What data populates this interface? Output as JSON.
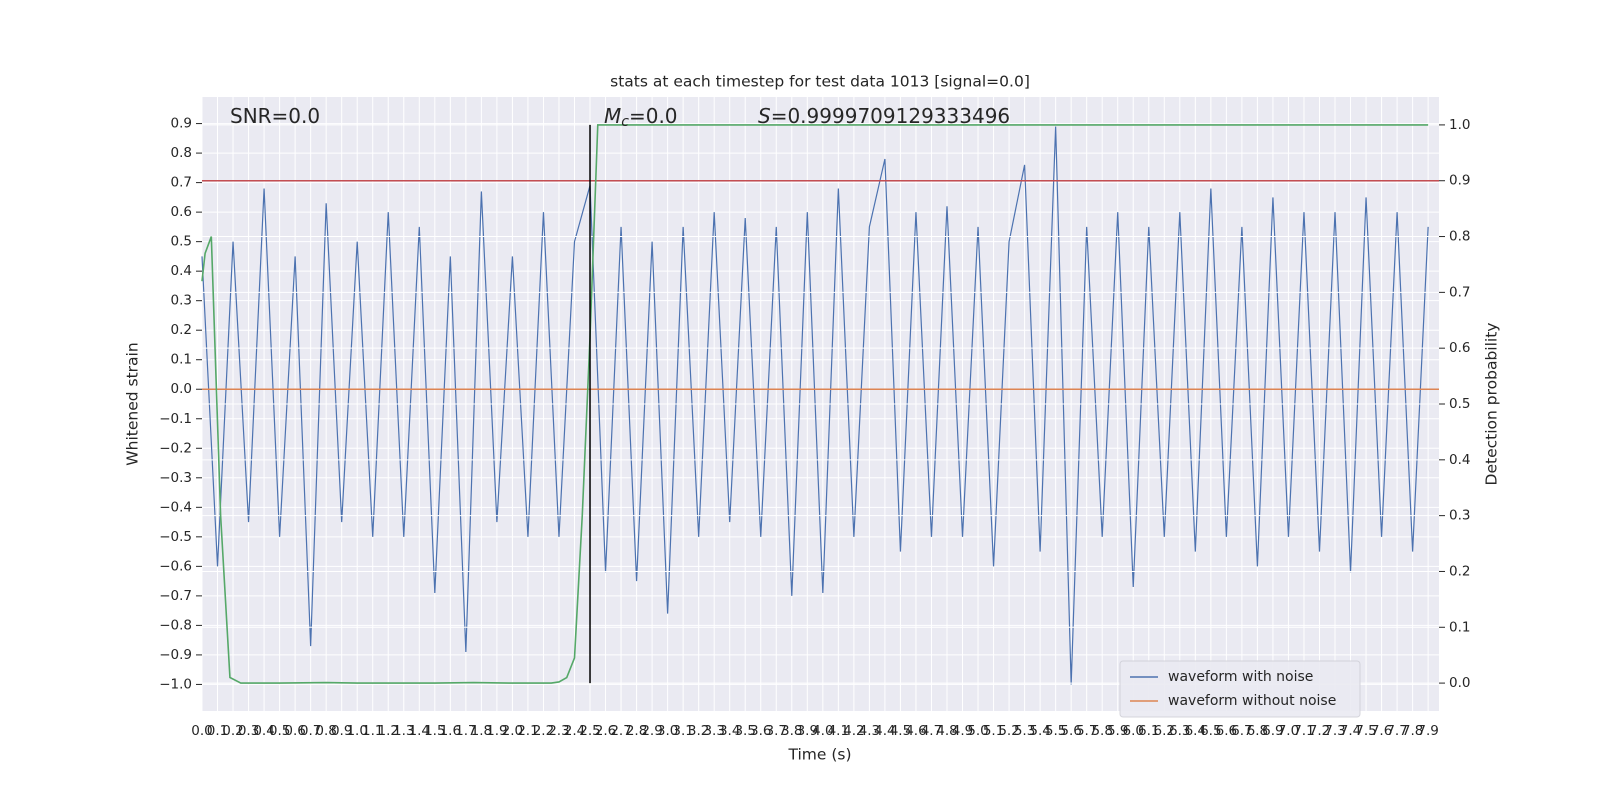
{
  "chart_data": {
    "type": "line",
    "title": "stats at each timestep for test data 1013 [signal=0.0]",
    "x_label": "Time (s)",
    "y_label": "Whitened strain",
    "y2_label": "Detection probability",
    "annotations": [
      {
        "text": "SNR=0.0"
      },
      {
        "symbol": "M",
        "sub": "c",
        "text": "=0.0"
      },
      {
        "symbol": "S",
        "text": "=0.9999709129333496"
      }
    ],
    "xlim": [
      0,
      7.97
    ],
    "ylim": [
      -1.09,
      0.99
    ],
    "y2lim": [
      -0.05,
      1.05
    ],
    "grid": true,
    "legend": "lower right",
    "xticks": [
      {
        "value": 0,
        "label": "0.0"
      },
      0.1,
      0.2,
      0.3,
      0.4,
      0.5,
      0.6,
      0.7,
      0.8,
      0.9,
      {
        "value": 1,
        "label": "1.0"
      },
      1.1,
      1.2,
      1.3,
      1.4,
      1.5,
      1.6,
      1.7,
      1.8,
      1.9,
      {
        "value": 2,
        "label": "2.0"
      },
      2.1,
      2.2,
      2.3,
      2.4,
      2.5,
      2.6,
      2.7,
      2.8,
      2.9,
      {
        "value": 3,
        "label": "3.0"
      },
      3.1,
      3.2,
      3.3,
      3.4,
      3.5,
      3.6,
      3.7,
      3.8,
      3.9,
      {
        "value": 4,
        "label": "4.0"
      },
      4.1,
      4.2,
      4.3,
      4.4,
      4.5,
      4.6,
      4.7,
      4.8,
      4.9,
      {
        "value": 5,
        "label": "5.0"
      },
      5.1,
      5.2,
      5.3,
      5.4,
      5.5,
      5.6,
      5.7,
      5.8,
      5.9,
      {
        "value": 6,
        "label": "6.0"
      },
      6.1,
      6.2,
      6.3,
      6.4,
      6.5,
      6.6,
      6.7,
      6.8,
      6.9,
      {
        "value": 7,
        "label": "7.0"
      },
      7.1,
      7.2,
      7.3,
      7.4,
      7.5,
      7.6,
      7.7,
      7.8,
      7.9
    ],
    "yticks": [
      {
        "value": -1,
        "label": "−1.0"
      },
      {
        "value": -0.9,
        "label": "−0.9"
      },
      {
        "value": -0.8,
        "label": "−0.8"
      },
      {
        "value": -0.7,
        "label": "−0.7"
      },
      {
        "value": -0.6,
        "label": "−0.6"
      },
      {
        "value": -0.5,
        "label": "−0.5"
      },
      {
        "value": -0.4,
        "label": "−0.4"
      },
      {
        "value": -0.3,
        "label": "−0.3"
      },
      {
        "value": -0.2,
        "label": "−0.2"
      },
      {
        "value": -0.1,
        "label": "−0.1"
      },
      {
        "value": 0,
        "label": "0.0"
      },
      0.1,
      0.2,
      0.3,
      0.4,
      0.5,
      0.6,
      0.7,
      0.8,
      0.9
    ],
    "y2ticks": [
      {
        "value": 0,
        "label": "0.0"
      },
      0.1,
      0.2,
      0.3,
      0.4,
      0.5,
      0.6,
      0.7,
      0.8,
      0.9,
      {
        "value": 1,
        "label": "1.0"
      }
    ],
    "series": [
      {
        "name": "waveform with noise",
        "color": "#4c72b0",
        "x": [
          0,
          0.1,
          0.2,
          0.3,
          0.4,
          0.5,
          0.6,
          0.7,
          0.8,
          0.9,
          1,
          1.1,
          1.2,
          1.3,
          1.4,
          1.5,
          1.6,
          1.7,
          1.8,
          1.9,
          2,
          2.1,
          2.2,
          2.3,
          2.4,
          2.5,
          2.6,
          2.7,
          2.8,
          2.9,
          3,
          3.1,
          3.2,
          3.3,
          3.4,
          3.5,
          3.6,
          3.7,
          3.8,
          3.9,
          4,
          4.1,
          4.2,
          4.3,
          4.4,
          4.5,
          4.6,
          4.7,
          4.8,
          4.9,
          5,
          5.1,
          5.2,
          5.3,
          5.4,
          5.5,
          5.6,
          5.7,
          5.8,
          5.9,
          6,
          6.1,
          6.2,
          6.3,
          6.4,
          6.5,
          6.6,
          6.7,
          6.8,
          6.9,
          7,
          7.1,
          7.2,
          7.3,
          7.4,
          7.5,
          7.6,
          7.7,
          7.8,
          7.9
        ],
        "values": [
          0.45,
          -0.6,
          0.5,
          -0.45,
          0.68,
          -0.5,
          0.45,
          -0.87,
          0.63,
          -0.45,
          0.5,
          -0.5,
          0.6,
          -0.5,
          0.55,
          -0.69,
          0.45,
          -0.89,
          0.67,
          -0.45,
          0.45,
          -0.5,
          0.6,
          -0.5,
          0.5,
          0.69,
          -0.62,
          0.55,
          -0.65,
          0.5,
          -0.76,
          0.55,
          -0.5,
          0.6,
          -0.45,
          0.58,
          -0.5,
          0.55,
          -0.7,
          0.6,
          -0.69,
          0.68,
          -0.5,
          0.55,
          0.78,
          -0.55,
          0.6,
          -0.5,
          0.62,
          -0.5,
          0.55,
          -0.6,
          0.5,
          0.76,
          -0.55,
          0.89,
          -1.0,
          0.55,
          -0.5,
          0.6,
          -0.67,
          0.55,
          -0.5,
          0.6,
          -0.55,
          0.68,
          -0.5,
          0.55,
          -0.6,
          0.65,
          -0.5,
          0.6,
          -0.55,
          0.6,
          -0.62,
          0.65,
          -0.5,
          0.6,
          -0.55,
          0.55
        ]
      },
      {
        "name": "waveform without noise",
        "color": "#dd8452",
        "x": [
          0,
          7.97
        ],
        "values": [
          0,
          0
        ]
      },
      {
        "color": "#55a868",
        "axis": "y2",
        "x": [
          0,
          0.02,
          0.06,
          0.12,
          0.18,
          0.25,
          0.5,
          0.8,
          1.0,
          1.5,
          1.75,
          2.0,
          2.25,
          2.3,
          2.35,
          2.4,
          2.45,
          2.5,
          2.55,
          2.6,
          3.0,
          4.0,
          5.0,
          6.0,
          7.0,
          7.9
        ],
        "values": [
          0.72,
          0.77,
          0.8,
          0.3,
          0.01,
          0,
          0,
          0.001,
          0,
          0,
          0.001,
          0,
          0,
          0.002,
          0.01,
          0.045,
          0.3,
          0.62,
          1.0,
          1.0,
          1.0,
          1.0,
          1.0,
          1.0,
          1.0,
          1.0
        ]
      }
    ],
    "hlines": [
      {
        "y2": 0.9,
        "color": "#c44e52"
      }
    ],
    "vlines": [
      {
        "x": 2.5,
        "y2": [
          0,
          1
        ],
        "color": "#000000"
      }
    ]
  }
}
